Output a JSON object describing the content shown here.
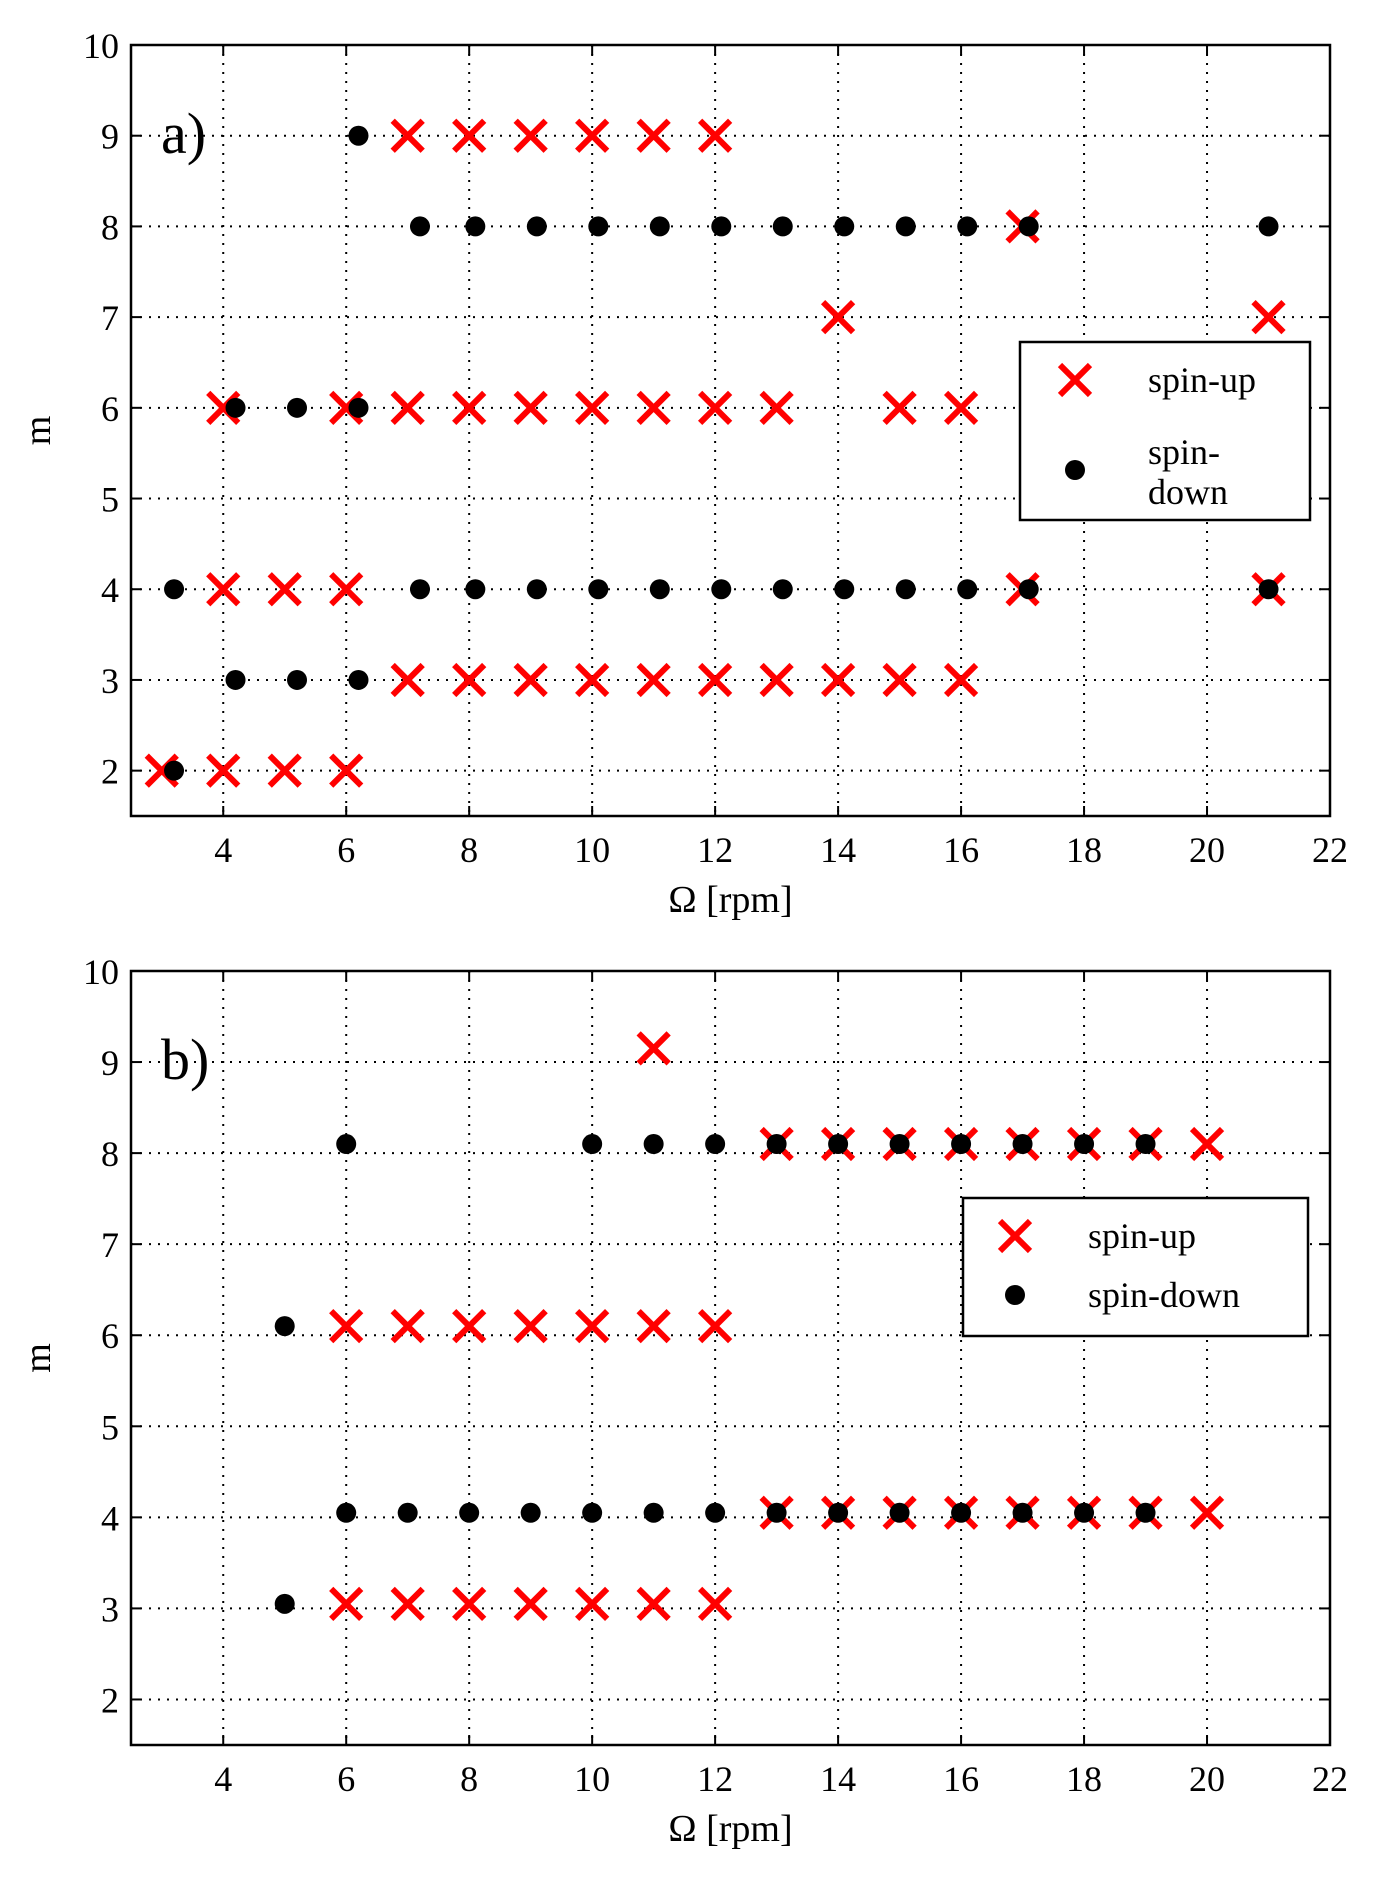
{
  "colors": {
    "spin_up": "#ff0000",
    "spin_down": "#000000"
  },
  "chart_data": [
    {
      "type": "scatter",
      "panel_label": "a)",
      "xlabel": "Ω [rpm]",
      "ylabel": "m",
      "xlim": [
        2.5,
        22
      ],
      "ylim": [
        1.5,
        10
      ],
      "xticks": [
        4,
        6,
        8,
        10,
        12,
        14,
        16,
        18,
        20,
        22
      ],
      "yticks": [
        2,
        3,
        4,
        5,
        6,
        7,
        8,
        9,
        10
      ],
      "grid": true,
      "legend": {
        "placement": "right"
      },
      "series": [
        {
          "name": "spin-up",
          "marker": "x",
          "points": [
            [
              3,
              2
            ],
            [
              4,
              2
            ],
            [
              5,
              2
            ],
            [
              6,
              2
            ],
            [
              7,
              3
            ],
            [
              8,
              3
            ],
            [
              9,
              3
            ],
            [
              10,
              3
            ],
            [
              11,
              3
            ],
            [
              12,
              3
            ],
            [
              13,
              3
            ],
            [
              14,
              3
            ],
            [
              15,
              3
            ],
            [
              16,
              3
            ],
            [
              4,
              4
            ],
            [
              5,
              4
            ],
            [
              6,
              4
            ],
            [
              17,
              4
            ],
            [
              21,
              4
            ],
            [
              4,
              6
            ],
            [
              6,
              6
            ],
            [
              7,
              6
            ],
            [
              8,
              6
            ],
            [
              9,
              6
            ],
            [
              10,
              6
            ],
            [
              11,
              6
            ],
            [
              12,
              6
            ],
            [
              13,
              6
            ],
            [
              15,
              6
            ],
            [
              16,
              6
            ],
            [
              14,
              7
            ],
            [
              21,
              7
            ],
            [
              17,
              8
            ],
            [
              7,
              9
            ],
            [
              8,
              9
            ],
            [
              9,
              9
            ],
            [
              10,
              9
            ],
            [
              11,
              9
            ],
            [
              12,
              9
            ]
          ]
        },
        {
          "name": "spin-down",
          "legend_lines": [
            "spin-",
            "down"
          ],
          "marker": "o",
          "points": [
            [
              3.2,
              2
            ],
            [
              4.2,
              3
            ],
            [
              5.2,
              3
            ],
            [
              6.2,
              3
            ],
            [
              3.2,
              4
            ],
            [
              7.2,
              4
            ],
            [
              8.1,
              4
            ],
            [
              9.1,
              4
            ],
            [
              10.1,
              4
            ],
            [
              11.1,
              4
            ],
            [
              12.1,
              4
            ],
            [
              13.1,
              4
            ],
            [
              14.1,
              4
            ],
            [
              15.1,
              4
            ],
            [
              16.1,
              4
            ],
            [
              17.1,
              4
            ],
            [
              21,
              4
            ],
            [
              4.2,
              6
            ],
            [
              5.2,
              6
            ],
            [
              6.2,
              6
            ],
            [
              7.2,
              8
            ],
            [
              8.1,
              8
            ],
            [
              9.1,
              8
            ],
            [
              10.1,
              8
            ],
            [
              11.1,
              8
            ],
            [
              12.1,
              8
            ],
            [
              13.1,
              8
            ],
            [
              14.1,
              8
            ],
            [
              15.1,
              8
            ],
            [
              16.1,
              8
            ],
            [
              17.1,
              8
            ],
            [
              21,
              8
            ],
            [
              6.2,
              9
            ]
          ]
        }
      ]
    },
    {
      "type": "scatter",
      "panel_label": "b)",
      "xlabel": "Ω [rpm]",
      "ylabel": "m",
      "xlim": [
        2.5,
        22
      ],
      "ylim": [
        1.5,
        10
      ],
      "xticks": [
        4,
        6,
        8,
        10,
        12,
        14,
        16,
        18,
        20,
        22
      ],
      "yticks": [
        2,
        3,
        4,
        5,
        6,
        7,
        8,
        9,
        10
      ],
      "grid": true,
      "legend": {
        "placement": "right"
      },
      "series": [
        {
          "name": "spin-up",
          "marker": "x",
          "points": [
            [
              6,
              3.05
            ],
            [
              7,
              3.05
            ],
            [
              8,
              3.05
            ],
            [
              9,
              3.05
            ],
            [
              10,
              3.05
            ],
            [
              11,
              3.05
            ],
            [
              12,
              3.05
            ],
            [
              13,
              4.05
            ],
            [
              14,
              4.05
            ],
            [
              15,
              4.05
            ],
            [
              16,
              4.05
            ],
            [
              17,
              4.05
            ],
            [
              18,
              4.05
            ],
            [
              19,
              4.05
            ],
            [
              20,
              4.05
            ],
            [
              6,
              6.1
            ],
            [
              7,
              6.1
            ],
            [
              8,
              6.1
            ],
            [
              9,
              6.1
            ],
            [
              10,
              6.1
            ],
            [
              11,
              6.1
            ],
            [
              12,
              6.1
            ],
            [
              13,
              8.1
            ],
            [
              14,
              8.1
            ],
            [
              15,
              8.1
            ],
            [
              16,
              8.1
            ],
            [
              17,
              8.1
            ],
            [
              18,
              8.1
            ],
            [
              19,
              8.1
            ],
            [
              20,
              8.1
            ],
            [
              11,
              9.15
            ]
          ]
        },
        {
          "name": "spin-down",
          "legend_lines": [
            "spin-down"
          ],
          "marker": "o",
          "points": [
            [
              5,
              3.05
            ],
            [
              6,
              4.05
            ],
            [
              7,
              4.05
            ],
            [
              8,
              4.05
            ],
            [
              9,
              4.05
            ],
            [
              10,
              4.05
            ],
            [
              11,
              4.05
            ],
            [
              12,
              4.05
            ],
            [
              13,
              4.05
            ],
            [
              14,
              4.05
            ],
            [
              15,
              4.05
            ],
            [
              16,
              4.05
            ],
            [
              17,
              4.05
            ],
            [
              18,
              4.05
            ],
            [
              19,
              4.05
            ],
            [
              5,
              6.1
            ],
            [
              6,
              8.1
            ],
            [
              10,
              8.1
            ],
            [
              11,
              8.1
            ],
            [
              12,
              8.1
            ],
            [
              13,
              8.1
            ],
            [
              14,
              8.1
            ],
            [
              15,
              8.1
            ],
            [
              16,
              8.1
            ],
            [
              17,
              8.1
            ],
            [
              18,
              8.1
            ],
            [
              19,
              8.1
            ]
          ]
        }
      ]
    }
  ]
}
